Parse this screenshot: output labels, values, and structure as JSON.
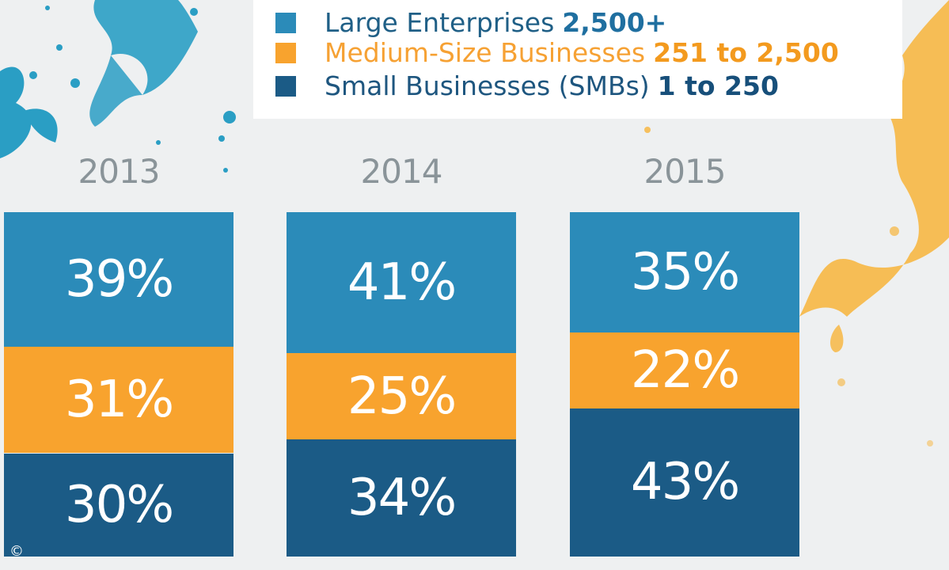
{
  "legend": {
    "items": [
      {
        "name": "Large Enterprises",
        "range": "2,500+",
        "color": "#2b8bb9",
        "text_color": "#1f5f86",
        "range_color": "#1f6fa0"
      },
      {
        "name": "Medium-Size Businesses",
        "range": "251 to 2,500",
        "color": "#f8a32e",
        "text_color": "#f6a133",
        "range_color": "#f39a1e"
      },
      {
        "name": "Small Businesses (SMBs)",
        "range": "1 to 250",
        "color": "#1b5b86",
        "text_color": "#1e567f",
        "range_color": "#174f7a"
      }
    ]
  },
  "copyright_symbol": "©",
  "chart_data": {
    "type": "bar",
    "stacked": true,
    "categories": [
      "2013",
      "2014",
      "2015"
    ],
    "series": [
      {
        "name": "Large Enterprises 2,500+",
        "values": [
          39,
          41,
          35
        ],
        "labels": [
          "39%",
          "41%",
          "35%"
        ],
        "color": "#2b8bb9"
      },
      {
        "name": "Medium-Size Businesses 251 to 2,500",
        "values": [
          31,
          25,
          22
        ],
        "labels": [
          "31%",
          "25%",
          "22%"
        ],
        "color": "#f8a32e"
      },
      {
        "name": "Small Businesses (SMBs) 1 to 250",
        "values": [
          30,
          34,
          43
        ],
        "labels": [
          "30%",
          "34%",
          "43%"
        ],
        "color": "#1b5b86"
      }
    ],
    "unit": "%",
    "title": "",
    "xlabel": "",
    "ylabel": "",
    "ylim": [
      0,
      100
    ]
  }
}
